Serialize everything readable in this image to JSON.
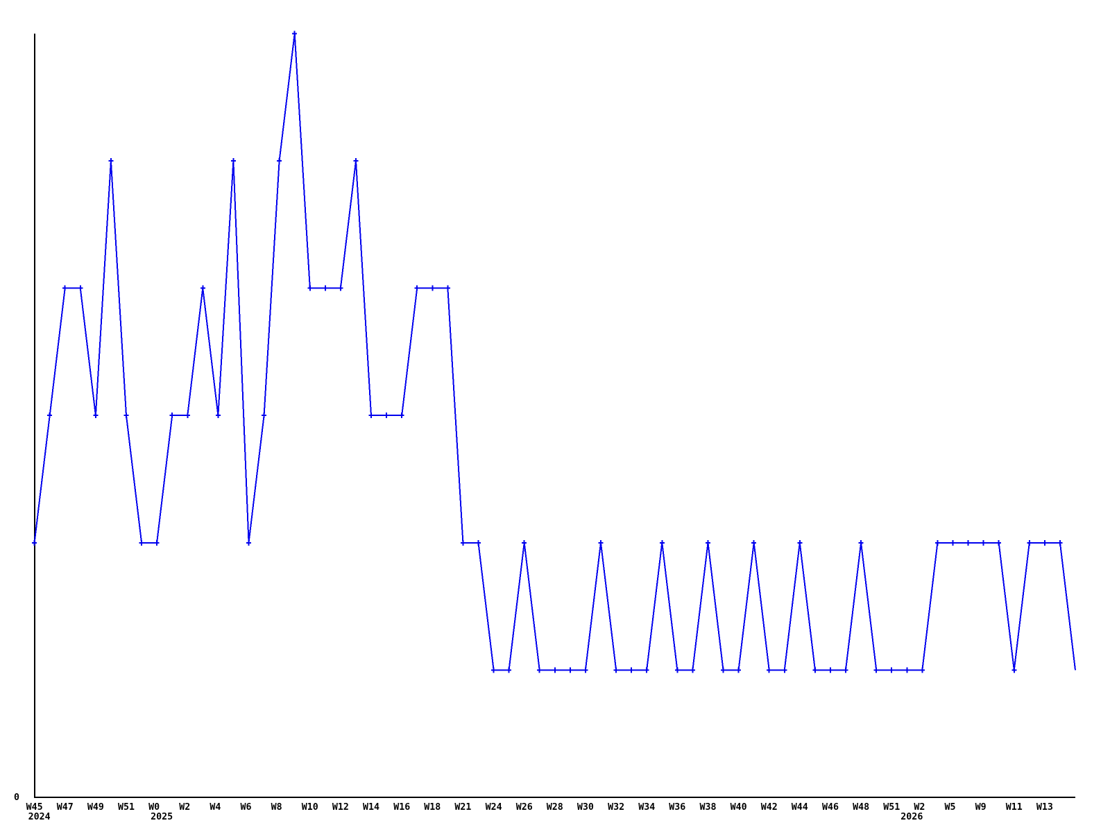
{
  "chart_data": {
    "type": "line",
    "title": "",
    "line_color": "#0000ee",
    "axis_color": "#000000",
    "background_color": "#ffffff",
    "marker": "plus",
    "marker_on_last_point": false,
    "grid": false,
    "legend": null,
    "y_axis": {
      "min": 0,
      "max": 6,
      "tick_labels": [
        {
          "value": 0,
          "label": "0"
        }
      ]
    },
    "x_axis": {
      "tick_labels": [
        {
          "i": 0,
          "label": "W45"
        },
        {
          "i": 2,
          "label": "W47"
        },
        {
          "i": 4,
          "label": "W49"
        },
        {
          "i": 6,
          "label": "W51"
        },
        {
          "i": 8,
          "label": "W0"
        },
        {
          "i": 10,
          "label": "W2"
        },
        {
          "i": 12,
          "label": "W4"
        },
        {
          "i": 14,
          "label": "W6"
        },
        {
          "i": 16,
          "label": "W8"
        },
        {
          "i": 18,
          "label": "W10"
        },
        {
          "i": 20,
          "label": "W12"
        },
        {
          "i": 22,
          "label": "W14"
        },
        {
          "i": 24,
          "label": "W16"
        },
        {
          "i": 26,
          "label": "W18"
        },
        {
          "i": 28,
          "label": "W21"
        },
        {
          "i": 30,
          "label": "W24"
        },
        {
          "i": 32,
          "label": "W26"
        },
        {
          "i": 34,
          "label": "W28"
        },
        {
          "i": 36,
          "label": "W30"
        },
        {
          "i": 38,
          "label": "W32"
        },
        {
          "i": 40,
          "label": "W34"
        },
        {
          "i": 42,
          "label": "W36"
        },
        {
          "i": 44,
          "label": "W38"
        },
        {
          "i": 46,
          "label": "W40"
        },
        {
          "i": 48,
          "label": "W42"
        },
        {
          "i": 50,
          "label": "W44"
        },
        {
          "i": 52,
          "label": "W46"
        },
        {
          "i": 54,
          "label": "W48"
        },
        {
          "i": 56,
          "label": "W51"
        },
        {
          "i": 58,
          "label": "W2"
        },
        {
          "i": 60,
          "label": "W5"
        },
        {
          "i": 62,
          "label": "W9"
        },
        {
          "i": 64,
          "label": "W11"
        },
        {
          "i": 66,
          "label": "W13"
        }
      ],
      "year_labels": [
        {
          "i": 0,
          "label": "2024"
        },
        {
          "i": 8,
          "label": "2025"
        },
        {
          "i": 57,
          "label": "2026"
        }
      ]
    },
    "values": [
      2,
      3,
      4,
      4,
      3,
      5,
      3,
      2,
      2,
      3,
      3,
      4,
      3,
      5,
      2,
      3,
      5,
      6,
      4,
      4,
      4,
      5,
      3,
      3,
      3,
      4,
      4,
      4,
      2,
      2,
      1,
      1,
      2,
      1,
      1,
      1,
      1,
      2,
      1,
      1,
      1,
      2,
      1,
      1,
      2,
      1,
      1,
      2,
      1,
      1,
      2,
      1,
      1,
      1,
      2,
      1,
      1,
      1,
      1,
      2,
      2,
      2,
      2,
      2,
      1,
      2,
      2,
      2,
      1
    ]
  }
}
